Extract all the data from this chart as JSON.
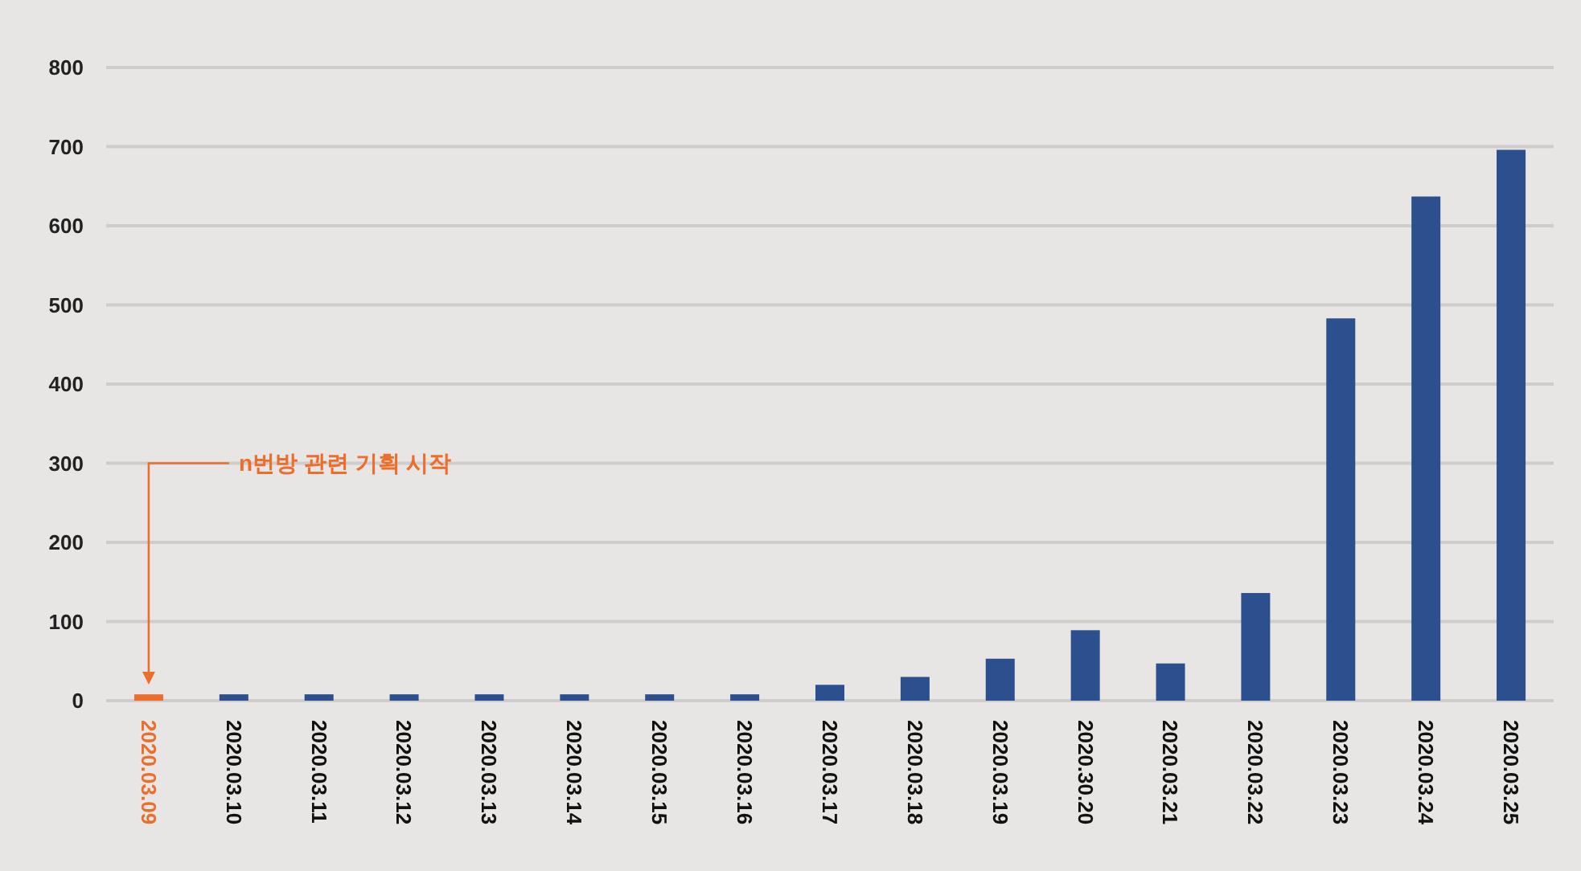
{
  "chart_data": {
    "type": "bar",
    "categories": [
      "2020.03.09",
      "2020.03.10",
      "2020.03.11",
      "2020.03.12",
      "2020.03.13",
      "2020.03.14",
      "2020.03.15",
      "2020.03.16",
      "2020.03.17",
      "2020.03.18",
      "2020.03.19",
      "2020.30.20",
      "2020.03.21",
      "2020.03.22",
      "2020.03.23",
      "2020.03.24",
      "2020.03.25"
    ],
    "values": [
      8,
      8,
      8,
      8,
      8,
      8,
      8,
      8,
      20,
      30,
      53,
      89,
      47,
      136,
      483,
      637,
      696
    ],
    "colors": [
      "#ec6e2d",
      "#2c4f8e",
      "#2c4f8e",
      "#2c4f8e",
      "#2c4f8e",
      "#2c4f8e",
      "#2c4f8e",
      "#2c4f8e",
      "#2c4f8e",
      "#2c4f8e",
      "#2c4f8e",
      "#2c4f8e",
      "#2c4f8e",
      "#2c4f8e",
      "#2c4f8e",
      "#2c4f8e",
      "#2c4f8e"
    ],
    "ylim": [
      0,
      800
    ],
    "yticks": [
      0,
      100,
      200,
      300,
      400,
      500,
      600,
      700,
      800
    ],
    "grid": "y",
    "annotations": [
      "n번방 관련 기획 시작"
    ]
  }
}
